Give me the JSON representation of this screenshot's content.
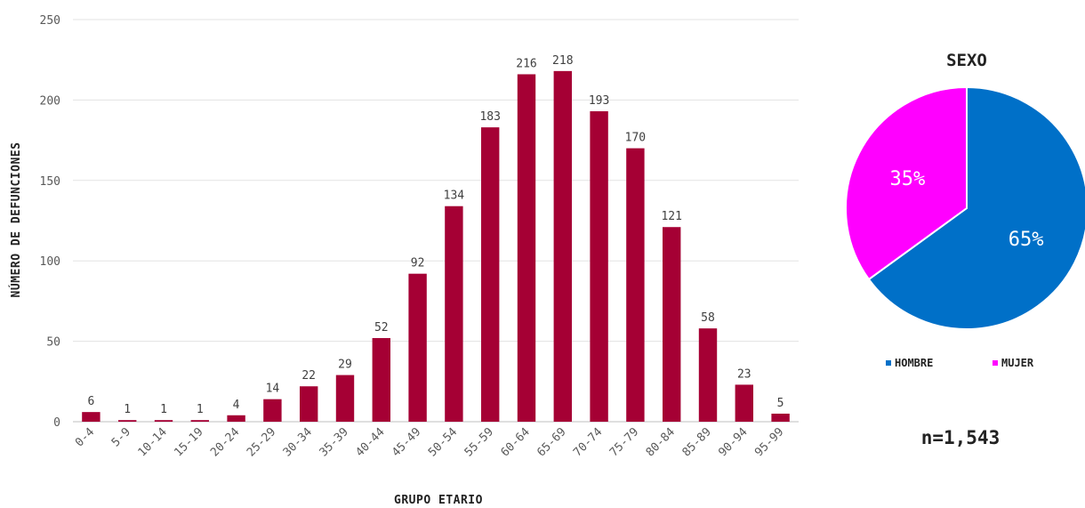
{
  "chart_data": [
    {
      "type": "bar",
      "title": "",
      "xlabel": "GRUPO ETARIO",
      "ylabel": "NÚMERO DE DEFUNCIONES",
      "ylim": [
        0,
        250
      ],
      "yticks": [
        0,
        50,
        100,
        150,
        200,
        250
      ],
      "grid": true,
      "categories": [
        "0-4",
        "5-9",
        "10-14",
        "15-19",
        "20-24",
        "25-29",
        "30-34",
        "35-39",
        "40-44",
        "45-49",
        "50-54",
        "55-59",
        "60-64",
        "65-69",
        "70-74",
        "75-79",
        "80-84",
        "85-89",
        "90-94",
        "95-99"
      ],
      "values": [
        6,
        1,
        1,
        1,
        4,
        14,
        22,
        29,
        52,
        92,
        134,
        183,
        216,
        218,
        193,
        170,
        121,
        58,
        23,
        5
      ],
      "bar_color": "#A50034"
    },
    {
      "type": "pie",
      "title": "SEXO",
      "legend_position": "bottom",
      "slices": [
        {
          "name": "HOMBRE",
          "value": 65,
          "label": "65%",
          "color": "#0070C8"
        },
        {
          "name": "MUJER",
          "value": 35,
          "label": "35%",
          "color": "#FF00FF"
        }
      ]
    }
  ],
  "footer": {
    "n_label": "n=1,543"
  }
}
